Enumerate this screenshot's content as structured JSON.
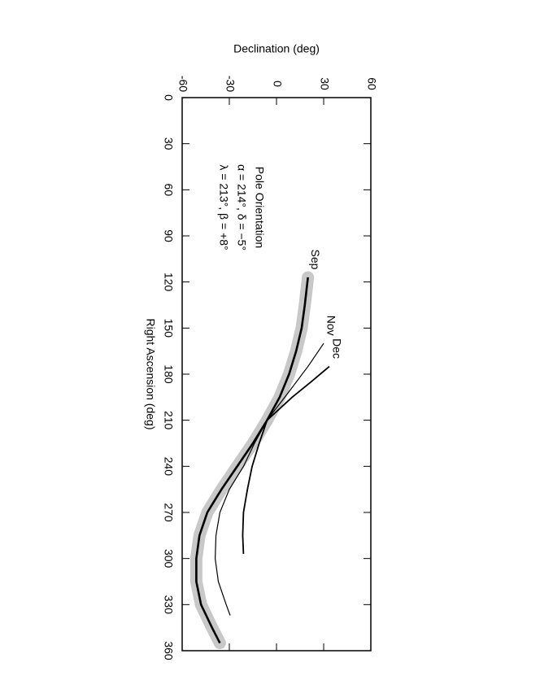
{
  "chart_data": {
    "type": "line",
    "x_label": "Right Ascension (deg)",
    "y_label": "Declination (deg)",
    "annotation": [
      "Pole Orientation",
      "α = 214°, δ = −5°",
      "λ = 213°, β = +8°"
    ],
    "xlim": [
      0,
      360
    ],
    "xticks": [
      0,
      30,
      60,
      90,
      120,
      150,
      180,
      210,
      240,
      270,
      300,
      330,
      360
    ],
    "ylim": [
      -60,
      60
    ],
    "yticks": [
      -60,
      -30,
      0,
      30,
      60
    ],
    "series": [
      {
        "name": "Sep",
        "color": "#000000",
        "band_color": "#c8c8c8",
        "x": [
          117,
          135,
          150,
          165,
          180,
          195,
          210,
          225,
          240,
          255,
          270,
          285,
          300,
          315,
          330,
          345,
          355
        ],
        "values": [
          20,
          18,
          16,
          12.5,
          8,
          2,
          -6,
          -15,
          -25,
          -35,
          -44,
          -49,
          -51,
          -51,
          -48,
          -41,
          -36
        ]
      },
      {
        "name": "Nov",
        "color": "#000000",
        "x": [
          160,
          175,
          190,
          210,
          225,
          240,
          255,
          270,
          285,
          300,
          315,
          330,
          337
        ],
        "values": [
          30,
          20,
          9,
          -6,
          -14,
          -21,
          -30,
          -36,
          -38.5,
          -39,
          -37,
          -32,
          -29.5
        ]
      },
      {
        "name": "Dec",
        "color": "#000000",
        "x": [
          175,
          185,
          195,
          210,
          225,
          240,
          255,
          270,
          285,
          297
        ],
        "values": [
          33.6,
          22,
          10,
          -6,
          -11,
          -15.5,
          -18.5,
          -21,
          -21.5,
          -21
        ]
      }
    ]
  }
}
